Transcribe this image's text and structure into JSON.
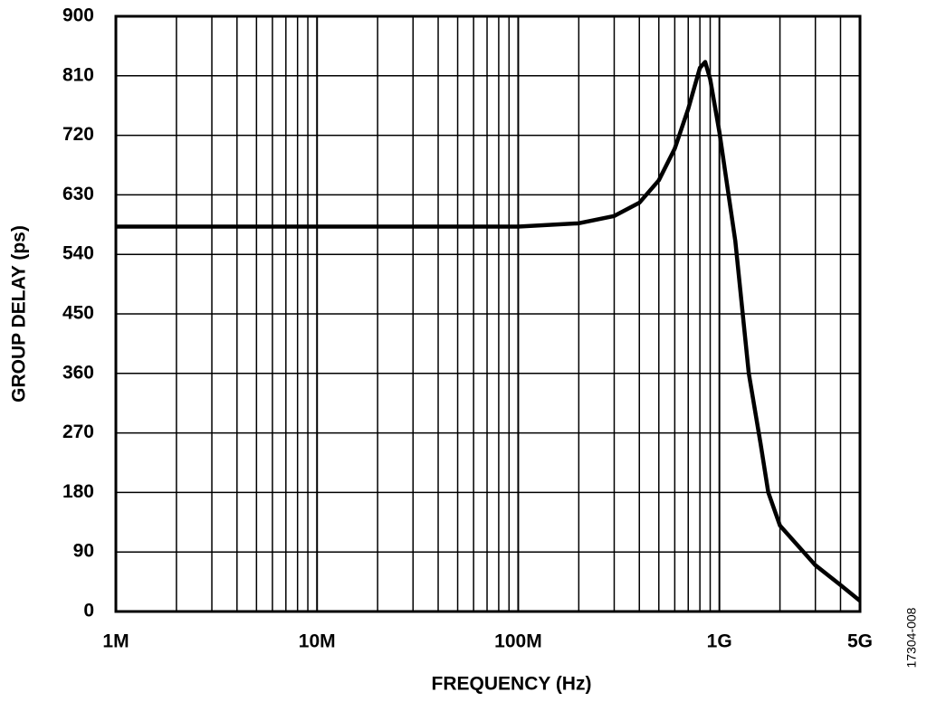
{
  "chart_data": {
    "type": "line",
    "xscale": "log",
    "grid": true,
    "xlabel": "FREQUENCY (Hz)",
    "ylabel": "GROUP DELAY (ps)",
    "note": "17304-008",
    "xlim": [
      1000000,
      5000000000
    ],
    "ylim": [
      0,
      900
    ],
    "xticks": [
      {
        "value": 1000000,
        "label": "1M"
      },
      {
        "value": 10000000,
        "label": "10M"
      },
      {
        "value": 100000000,
        "label": "100M"
      },
      {
        "value": 1000000000,
        "label": "1G"
      },
      {
        "value": 5000000000,
        "label": "5G"
      }
    ],
    "xgrid": [
      2000000,
      3000000,
      4000000,
      5000000,
      6000000,
      7000000,
      8000000,
      9000000,
      20000000,
      30000000,
      40000000,
      50000000,
      60000000,
      70000000,
      80000000,
      90000000,
      200000000,
      300000000,
      400000000,
      500000000,
      600000000,
      700000000,
      800000000,
      900000000,
      2000000000,
      3000000000,
      4000000000
    ],
    "yticks": [
      0,
      90,
      180,
      270,
      360,
      450,
      540,
      630,
      720,
      810,
      900
    ],
    "x": [
      1000000,
      10000000,
      100000000,
      200000000,
      300000000,
      400000000,
      500000000,
      600000000,
      700000000,
      800000000,
      850000000,
      900000000,
      1000000000,
      1200000000,
      1400000000,
      1600000000,
      1750000000,
      2000000000,
      3000000000,
      4000000000,
      5000000000
    ],
    "series": [
      {
        "color": "#000000",
        "values": [
          582,
          582,
          582,
          587,
          598,
          618,
          652,
          700,
          760,
          822,
          831,
          805,
          725,
          560,
          360,
          255,
          180,
          130,
          70,
          40,
          16
        ]
      }
    ]
  }
}
